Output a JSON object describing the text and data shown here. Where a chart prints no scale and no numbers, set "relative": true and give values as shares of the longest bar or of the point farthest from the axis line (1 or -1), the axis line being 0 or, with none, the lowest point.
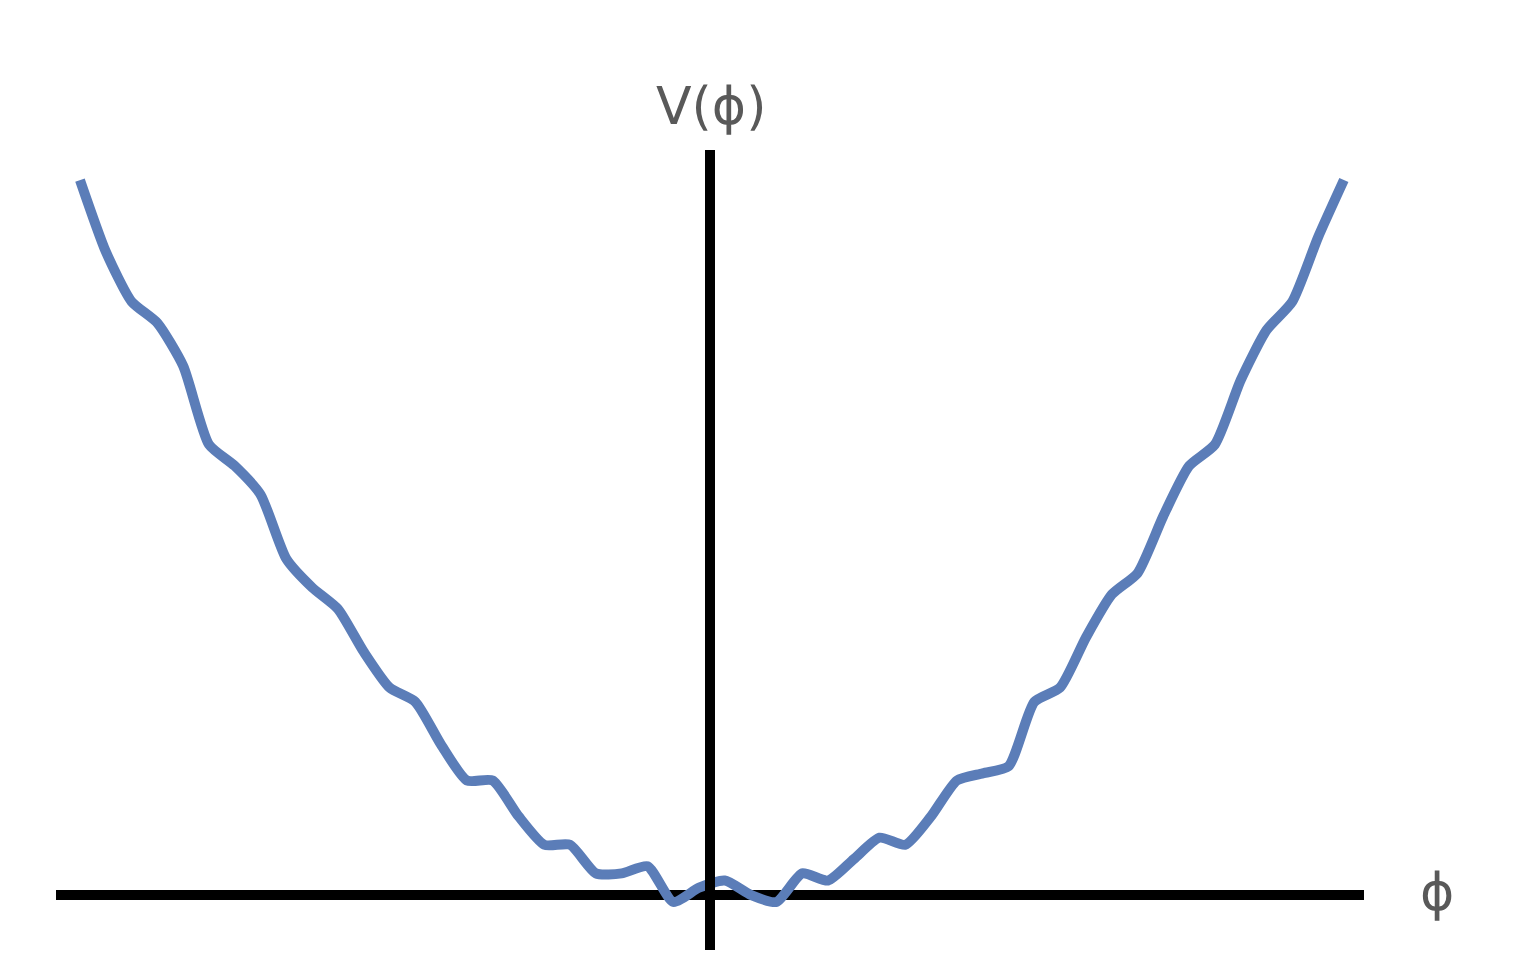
{
  "chart_data": {
    "type": "line",
    "relative": true,
    "xlabel": "ϕ",
    "ylabel": "V(ϕ)",
    "marker": "none",
    "line_style": "solid",
    "categories": [
      null,
      null,
      null,
      null,
      null,
      null,
      null,
      null,
      null,
      null,
      null,
      null,
      null,
      null,
      null,
      null,
      null,
      null,
      null,
      null,
      null,
      null,
      null,
      null,
      null,
      null,
      null,
      null,
      null,
      null,
      null,
      null,
      null,
      null,
      null,
      null,
      null,
      null,
      null,
      null,
      null,
      null,
      null,
      null,
      null,
      null,
      null,
      null,
      null,
      null
    ],
    "series": [
      {
        "color": "#5b7db8",
        "values": [
          1.0,
          0.9,
          0.83,
          0.8,
          0.74,
          0.63,
          0.6,
          0.56,
          0.47,
          0.43,
          0.4,
          0.34,
          0.29,
          0.27,
          0.21,
          0.16,
          0.16,
          0.11,
          0.07,
          0.07,
          0.03,
          0.03,
          0.04,
          -0.01,
          0.01,
          0.02,
          0.0,
          -0.01,
          0.03,
          0.02,
          0.05,
          0.08,
          0.07,
          0.11,
          0.16,
          0.17,
          0.18,
          0.27,
          0.29,
          0.36,
          0.42,
          0.45,
          0.53,
          0.6,
          0.63,
          0.72,
          0.79,
          0.83,
          0.92,
          1.0
        ]
      }
    ]
  }
}
